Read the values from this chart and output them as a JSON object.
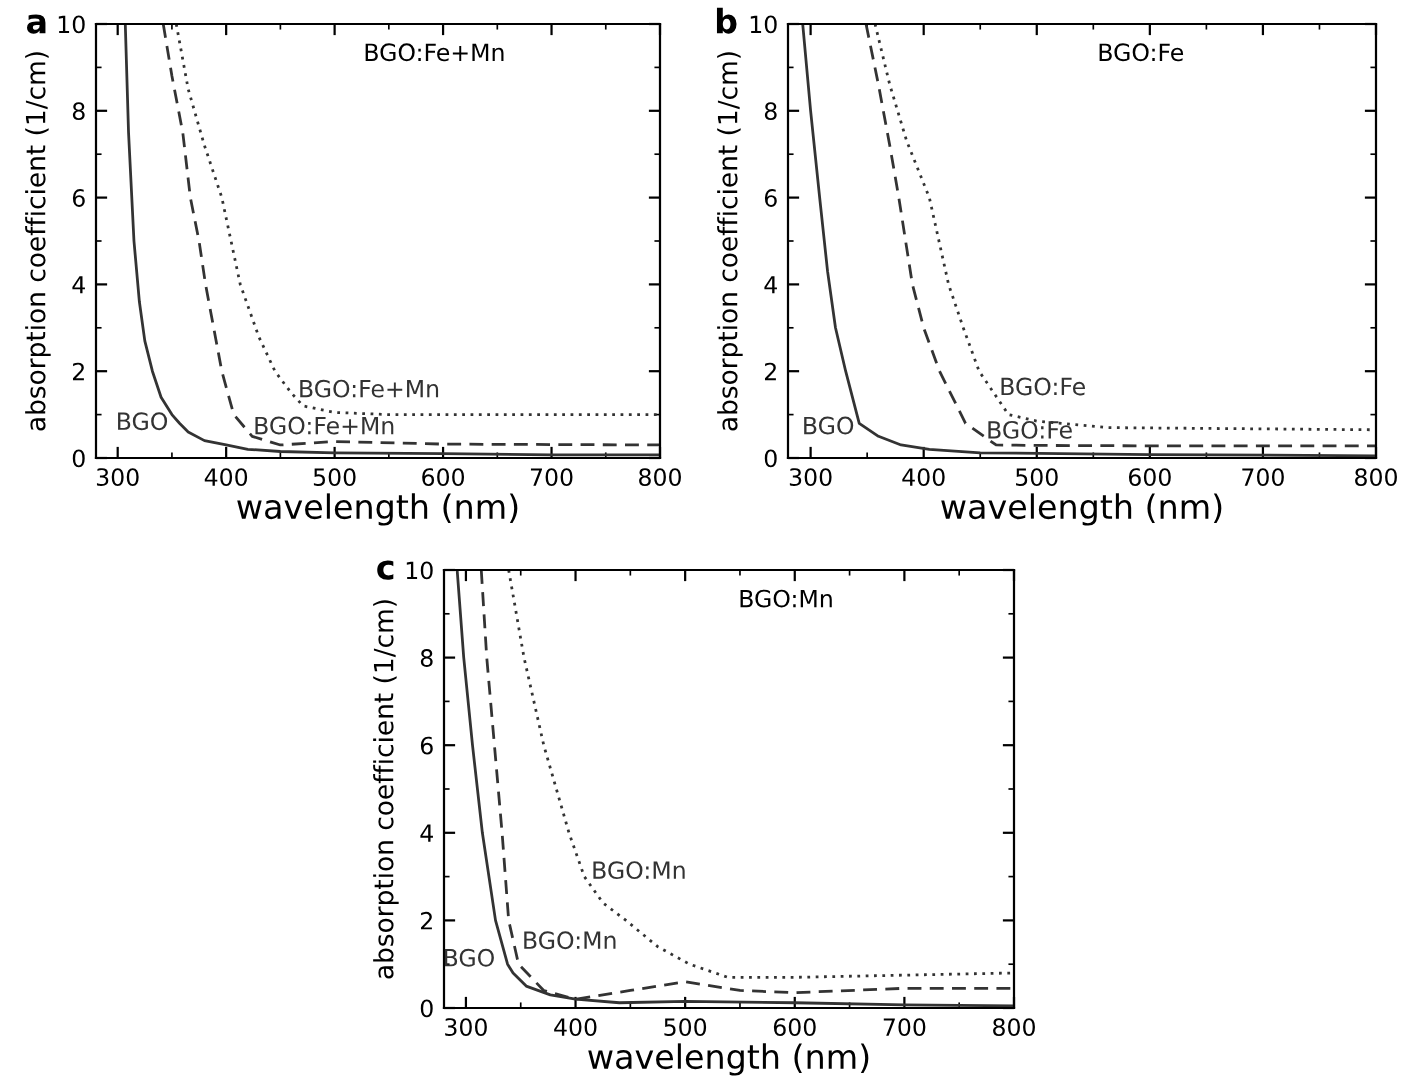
{
  "chart_data": [
    {
      "type": "line",
      "title": "a",
      "xlabel": "wavelength (nm)",
      "ylabel": "absorption coefficient (1/cm)",
      "xlim": [
        280,
        800
      ],
      "xticks": [
        300,
        400,
        500,
        600,
        700,
        800
      ],
      "ylim": [
        0,
        10
      ],
      "yticks": [
        0,
        2,
        4,
        6,
        8,
        10
      ],
      "series": [
        {
          "name": "BGO",
          "color": "#333333",
          "line_style": "solid",
          "x": [
            307,
            310,
            315,
            320,
            325,
            332,
            340,
            350,
            357,
            365,
            380,
            400,
            420,
            450,
            500,
            600,
            700,
            800
          ],
          "values": [
            10,
            7.5,
            5,
            3.6,
            2.7,
            2,
            1.4,
            1,
            0.8,
            0.6,
            0.4,
            0.3,
            0.2,
            0.15,
            0.12,
            0.1,
            0.07,
            0.07
          ]
        },
        {
          "name": "BGO:Fe+Mn",
          "color": "#333333",
          "line_style": "dashed",
          "x": [
            342,
            350,
            360,
            367,
            375,
            381,
            390,
            396,
            407,
            424,
            450,
            500,
            600,
            800
          ],
          "values": [
            10,
            8.8,
            7.5,
            6,
            5,
            4,
            2.8,
            2,
            1,
            0.5,
            0.3,
            0.38,
            0.32,
            0.3
          ]
        },
        {
          "name": "BGO:Fe+Mn",
          "color": "#333333",
          "line_style": "dotted",
          "x": [
            354,
            365,
            380,
            396,
            413,
            430,
            445,
            460,
            471,
            500,
            550,
            800
          ],
          "values": [
            10,
            8.5,
            7.2,
            6,
            4,
            2.8,
            2,
            1.5,
            1.2,
            1.05,
            1.0,
            1.0
          ]
        }
      ],
      "annotations": [
        "BGO:Fe+Mn"
      ]
    },
    {
      "type": "line",
      "title": "b",
      "xlabel": "wavelength (nm)",
      "ylabel": "absorption coefficient (1/cm)",
      "xlim": [
        280,
        800
      ],
      "xticks": [
        300,
        400,
        500,
        600,
        700,
        800
      ],
      "ylim": [
        0,
        10
      ],
      "yticks": [
        0,
        2,
        4,
        6,
        8,
        10
      ],
      "series": [
        {
          "name": "BGO",
          "color": "#333333",
          "line_style": "solid",
          "x": [
            293,
            300,
            308,
            315,
            322,
            331,
            343,
            360,
            380,
            405,
            450,
            600,
            800
          ],
          "values": [
            10,
            8,
            6,
            4.3,
            3,
            2,
            0.8,
            0.5,
            0.3,
            0.2,
            0.12,
            0.08,
            0.05
          ]
        },
        {
          "name": "BGO:Fe",
          "color": "#333333",
          "line_style": "dashed",
          "x": [
            349,
            360,
            370,
            378,
            390,
            400,
            414,
            437,
            464,
            500,
            600,
            800
          ],
          "values": [
            10,
            8.6,
            7.2,
            6,
            4,
            3,
            2,
            0.8,
            0.3,
            0.29,
            0.28,
            0.28
          ]
        },
        {
          "name": "BGO:Fe",
          "color": "#333333",
          "line_style": "dotted",
          "x": [
            357,
            370,
            385,
            405,
            422,
            435,
            449,
            475,
            500,
            563,
            800
          ],
          "values": [
            10,
            8.6,
            7.3,
            6,
            4,
            3,
            2,
            1,
            0.85,
            0.7,
            0.65
          ]
        }
      ],
      "annotations": [
        "BGO:Fe"
      ]
    },
    {
      "type": "line",
      "title": "c",
      "xlabel": "wavelength (nm)",
      "ylabel": "absorption coefficient (1/cm)",
      "xlim": [
        280,
        800
      ],
      "xticks": [
        300,
        400,
        500,
        600,
        700,
        800
      ],
      "ylim": [
        0,
        10
      ],
      "yticks": [
        0,
        2,
        4,
        6,
        8,
        10
      ],
      "series": [
        {
          "name": "BGO",
          "color": "#333333",
          "line_style": "solid",
          "x": [
            292,
            298,
            306,
            315,
            327,
            338,
            343,
            355,
            377,
            400,
            440,
            500,
            600,
            700,
            800
          ],
          "values": [
            10,
            8,
            6,
            4,
            2,
            1,
            0.8,
            0.5,
            0.3,
            0.2,
            0.12,
            0.15,
            0.12,
            0.07,
            0.05
          ]
        },
        {
          "name": "BGO:Mn",
          "color": "#333333",
          "line_style": "dashed",
          "x": [
            314,
            319,
            326,
            333,
            339,
            348,
            371,
            400,
            450,
            500,
            550,
            600,
            700,
            800
          ],
          "values": [
            10,
            8,
            6,
            4,
            2,
            1,
            0.4,
            0.2,
            0.4,
            0.6,
            0.4,
            0.35,
            0.45,
            0.45
          ]
        },
        {
          "name": "BGO:Mn",
          "color": "#333333",
          "line_style": "dotted",
          "x": [
            339,
            353,
            371,
            394,
            408,
            425,
            446,
            475,
            504,
            539,
            600,
            700,
            800
          ],
          "values": [
            10,
            8,
            6,
            4,
            3,
            2.4,
            2,
            1.4,
            1,
            0.7,
            0.7,
            0.75,
            0.8
          ]
        }
      ],
      "annotations": [
        "BGO:Mn"
      ]
    }
  ]
}
